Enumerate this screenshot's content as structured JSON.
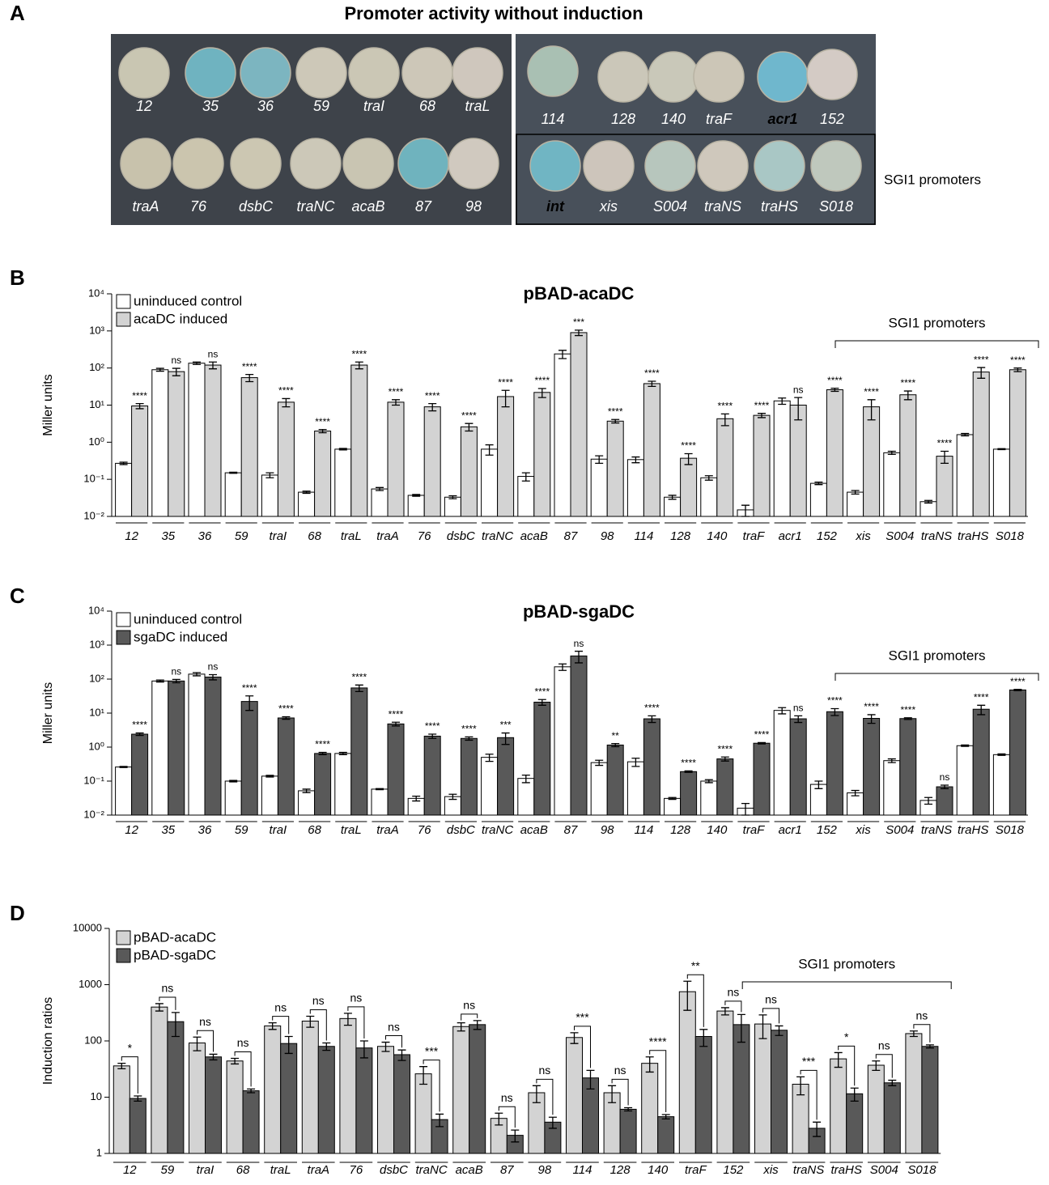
{
  "panel_labels": [
    "A",
    "B",
    "C",
    "D"
  ],
  "photo": {
    "title": "Promoter activity without induction",
    "side_label": "SGI1 promoters",
    "colonies": [
      {
        "label": "12",
        "color": "#c9c6b2"
      },
      {
        "label": "35",
        "color": "#6fb3c0"
      },
      {
        "label": "36",
        "color": "#7cb5c0"
      },
      {
        "label": "59",
        "color": "#cdc8b8"
      },
      {
        "label": "traI",
        "color": "#cbc7b5"
      },
      {
        "label": "68",
        "color": "#cdc7b8"
      },
      {
        "label": "traL",
        "color": "#cfc7bd"
      },
      {
        "label": "traA",
        "color": "#c8c2ac"
      },
      {
        "label": "76",
        "color": "#cbc5ae"
      },
      {
        "label": "dsbC",
        "color": "#ccc7b2"
      },
      {
        "label": "traNC",
        "color": "#ccc8b8"
      },
      {
        "label": "acaB",
        "color": "#c9c5b2"
      },
      {
        "label": "87",
        "color": "#6fb3be"
      },
      {
        "label": "98",
        "color": "#d0c9bf"
      },
      {
        "label": "114",
        "color": "#a9c0b3"
      },
      {
        "label": "128",
        "color": "#cbc7b9"
      },
      {
        "label": "140",
        "color": "#c9c8b9"
      },
      {
        "label": "traF",
        "color": "#ccc6b7"
      },
      {
        "label": "acr1",
        "color": "#6fb7cd"
      },
      {
        "label": "152",
        "color": "#d4cbc5"
      },
      {
        "label": "int",
        "color": "#70b5c3"
      },
      {
        "label": "xis",
        "color": "#cdc5bb"
      },
      {
        "label": "S004",
        "color": "#b7c6bd"
      },
      {
        "label": "traNS",
        "color": "#cfc8bc"
      },
      {
        "label": "traHS",
        "color": "#a9c7c5"
      },
      {
        "label": "S018",
        "color": "#bfc8bd"
      }
    ]
  },
  "chart_data": [
    {
      "type": "bar",
      "title": "pBAD-acaDC",
      "ylabel": "Miller units",
      "log_scale": true,
      "legend": "upper left",
      "bracket_label": "SGI1 promoters",
      "ylim": [
        0.01,
        10000
      ],
      "yticks": [
        {
          "value": 0.01,
          "label": "10⁻²"
        },
        {
          "value": 0.1,
          "label": "10⁻¹"
        },
        {
          "value": 1,
          "label": "10⁰"
        },
        {
          "value": 10,
          "label": "10¹"
        },
        {
          "value": 100,
          "label": "10²"
        },
        {
          "value": 1000,
          "label": "10³"
        },
        {
          "value": 10000,
          "label": "10⁴"
        }
      ],
      "categories": [
        "12",
        "35",
        "36",
        "59",
        "traI",
        "68",
        "traL",
        "traA",
        "76",
        "dsbC",
        "traNC",
        "acaB",
        "87",
        "98",
        "114",
        "128",
        "140",
        "traF",
        "acr1",
        "152",
        "xis",
        "S004",
        "traNS",
        "traHS",
        "S018"
      ],
      "series": [
        {
          "name": "uninduced control",
          "color": "#ffffff",
          "values": [
            0.27,
            90,
            135,
            0.15,
            0.13,
            0.045,
            0.65,
            0.055,
            0.037,
            0.033,
            0.65,
            0.12,
            240,
            0.35,
            0.34,
            0.033,
            0.11,
            0.015,
            13,
            0.078,
            0.045,
            0.52,
            0.025,
            1.6,
            0.65
          ],
          "errors": [
            0.02,
            8,
            10,
            0.005,
            0.02,
            0.003,
            0.03,
            0.005,
            0.002,
            0.003,
            0.2,
            0.03,
            60,
            0.08,
            0.06,
            0.004,
            0.015,
            0.005,
            2.5,
            0.006,
            0.005,
            0.05,
            0.002,
            0.12,
            0.02
          ]
        },
        {
          "name": "acaDC induced",
          "color": "#d3d3d3",
          "values": [
            9.5,
            80,
            120,
            55,
            12,
            2.0,
            120,
            12,
            9,
            2.6,
            17,
            22,
            900,
            3.7,
            38,
            0.37,
            4.3,
            5.3,
            10,
            26,
            9,
            19,
            0.42,
            78,
            90
          ],
          "errors": [
            1.5,
            18,
            25,
            12,
            3,
            0.2,
            25,
            2,
            2,
            0.6,
            8,
            6,
            150,
            0.4,
            6,
            0.12,
            1.5,
            0.7,
            6,
            2.5,
            5,
            5,
            0.15,
            25,
            10
          ]
        }
      ],
      "significance": [
        "****",
        "ns",
        "ns",
        "****",
        "****",
        "****",
        "****",
        "****",
        "****",
        "****",
        "****",
        "****",
        "***",
        "****",
        "****",
        "****",
        "****",
        "****",
        "ns",
        "****",
        "****",
        "****",
        "****",
        "****",
        "****"
      ]
    },
    {
      "type": "bar",
      "title": "pBAD-sgaDC",
      "ylabel": "Miller units",
      "log_scale": true,
      "legend": "upper left",
      "bracket_label": "SGI1 promoters",
      "ylim": [
        0.01,
        10000
      ],
      "yticks": [
        {
          "value": 0.01,
          "label": "10⁻²"
        },
        {
          "value": 0.1,
          "label": "10⁻¹"
        },
        {
          "value": 1,
          "label": "10⁰"
        },
        {
          "value": 10,
          "label": "10¹"
        },
        {
          "value": 100,
          "label": "10²"
        },
        {
          "value": 1000,
          "label": "10³"
        },
        {
          "value": 10000,
          "label": "10⁴"
        }
      ],
      "categories": [
        "12",
        "35",
        "36",
        "59",
        "traI",
        "68",
        "traL",
        "traA",
        "76",
        "dsbC",
        "traNC",
        "acaB",
        "87",
        "98",
        "114",
        "128",
        "140",
        "traF",
        "acr1",
        "152",
        "xis",
        "S004",
        "traNS",
        "traHS",
        "S018"
      ],
      "series": [
        {
          "name": "uninduced control",
          "color": "#ffffff",
          "values": [
            0.26,
            88,
            140,
            0.1,
            0.14,
            0.052,
            0.65,
            0.058,
            0.031,
            0.035,
            0.5,
            0.12,
            230,
            0.35,
            0.37,
            0.031,
            0.1,
            0.016,
            12,
            0.08,
            0.045,
            0.4,
            0.027,
            1.1,
            0.6
          ],
          "errors": [
            0.01,
            6,
            15,
            0.005,
            0.008,
            0.006,
            0.05,
            0.002,
            0.005,
            0.006,
            0.12,
            0.03,
            50,
            0.06,
            0.1,
            0.002,
            0.01,
            0.006,
            2.5,
            0.02,
            0.008,
            0.05,
            0.006,
            0.05,
            0.03
          ]
        },
        {
          "name": "sgaDC induced",
          "color": "#595959",
          "values": [
            2.4,
            88,
            115,
            22,
            7.2,
            0.65,
            55,
            4.8,
            2.1,
            1.8,
            1.9,
            21,
            480,
            1.15,
            6.8,
            0.19,
            0.45,
            1.3,
            6.8,
            11,
            7,
            6.9,
            0.068,
            13,
            48
          ],
          "errors": [
            0.2,
            10,
            20,
            10,
            0.6,
            0.05,
            12,
            0.6,
            0.3,
            0.2,
            0.7,
            4,
            180,
            0.12,
            1.5,
            0.01,
            0.06,
            0.06,
            1.5,
            2.5,
            2,
            0.4,
            0.008,
            4,
            2
          ]
        }
      ],
      "significance": [
        "****",
        "ns",
        "ns",
        "****",
        "****",
        "****",
        "****",
        "****",
        "****",
        "****",
        "***",
        "****",
        "ns",
        "**",
        "****",
        "****",
        "****",
        "****",
        "ns",
        "****",
        "****",
        "****",
        "ns",
        "****",
        "****"
      ]
    },
    {
      "type": "bar_pair",
      "ylabel": "Induction ratios",
      "log_scale": true,
      "legend": "upper left",
      "bracket_label": "SGI1 promoters",
      "ylim": [
        1,
        10000
      ],
      "yticks": [
        1,
        10,
        100,
        1000,
        10000
      ],
      "categories": [
        "12",
        "59",
        "traI",
        "68",
        "traL",
        "traA",
        "76",
        "dsbC",
        "traNC",
        "acaB",
        "87",
        "98",
        "114",
        "128",
        "140",
        "traF",
        "152",
        "xis",
        "traNS",
        "traHS",
        "S004",
        "S018"
      ],
      "series": [
        {
          "name": "pBAD-acaDC",
          "color": "#d3d3d3",
          "values": [
            36,
            400,
            92,
            44,
            185,
            225,
            250,
            80,
            26,
            180,
            4.2,
            12,
            115,
            12,
            40,
            750,
            340,
            200,
            17,
            48,
            37,
            135
          ],
          "errors": [
            4,
            60,
            25,
            5,
            25,
            50,
            60,
            15,
            9,
            30,
            1,
            4,
            25,
            4,
            12,
            400,
            50,
            90,
            6,
            14,
            7,
            15
          ]
        },
        {
          "name": "pBAD-sgaDC",
          "color": "#595959",
          "values": [
            9.5,
            220,
            52,
            13,
            90,
            80,
            75,
            57,
            4,
            195,
            2.1,
            3.6,
            22,
            6.1,
            4.5,
            120,
            195,
            155,
            2.8,
            11.5,
            18,
            80
          ],
          "errors": [
            1,
            100,
            6,
            1,
            30,
            12,
            25,
            12,
            1,
            35,
            0.5,
            0.8,
            8,
            0.4,
            0.4,
            40,
            100,
            30,
            0.8,
            3,
            2,
            5
          ]
        }
      ],
      "significance": [
        "*",
        "ns",
        "ns",
        "ns",
        "ns",
        "ns",
        "ns",
        "ns",
        "***",
        "ns",
        "ns",
        "ns",
        "***",
        "ns",
        "****",
        "**",
        "ns",
        "ns",
        "***",
        "*",
        "ns",
        "ns"
      ]
    }
  ]
}
